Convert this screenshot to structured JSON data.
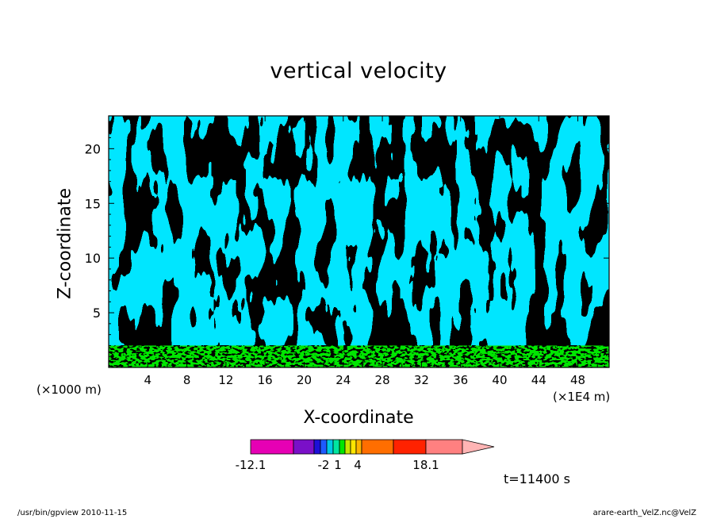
{
  "chart_data": {
    "type": "heatmap",
    "title": "vertical velocity",
    "xlabel": "X-coordinate",
    "ylabel": "Z-coordinate",
    "x_multiplier_label": "(×1000 m)",
    "x_unit_label": "(×1E4 m)",
    "x_ticks": [
      4,
      8,
      12,
      16,
      20,
      24,
      28,
      32,
      36,
      40,
      44,
      48
    ],
    "y_ticks": [
      5,
      10,
      15,
      20
    ],
    "xlim": [
      0,
      51.2
    ],
    "ylim": [
      0,
      23
    ],
    "field_sign_colors": {
      "negative": "#00e6ff",
      "positive": "#00e600"
    },
    "near_surface_band_top": 2,
    "colorbar": {
      "min_label": "-12.1",
      "max_label": "18.1",
      "tick_labels": [
        "-2",
        "1",
        "4"
      ],
      "colors": [
        "#e600b4",
        "#7a10c8",
        "#1c10d8",
        "#1e5aff",
        "#00c8e6",
        "#00e6a0",
        "#00e600",
        "#c8e600",
        "#ffe600",
        "#ffb400",
        "#ff6e00",
        "#ff2200",
        "#ff8080",
        "#ffb4b4"
      ]
    }
  },
  "annotations": {
    "time": "t=11400 s"
  },
  "footer": {
    "left": "/usr/bin/gpview   2010-11-15",
    "right": "arare-earth_VelZ.nc@VelZ"
  }
}
